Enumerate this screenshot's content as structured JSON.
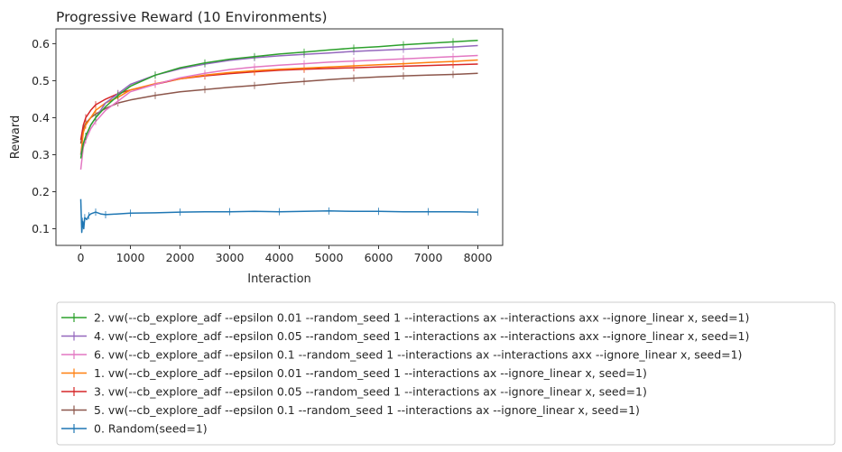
{
  "chart_data": {
    "type": "line",
    "title": "Progressive Reward (10 Environments)",
    "xlabel": "Interaction",
    "ylabel": "Reward",
    "xlim": [
      -500,
      8500
    ],
    "ylim": [
      0.055,
      0.64
    ],
    "xticks": [
      0,
      1000,
      2000,
      3000,
      4000,
      5000,
      6000,
      7000,
      8000
    ],
    "yticks": [
      0.1,
      0.2,
      0.3,
      0.4,
      0.5,
      0.6
    ],
    "xtick_labels": [
      "0",
      "1000",
      "2000",
      "3000",
      "4000",
      "5000",
      "6000",
      "7000",
      "8000"
    ],
    "ytick_labels": [
      "0.1",
      "0.2",
      "0.3",
      "0.4",
      "0.5",
      "0.6"
    ],
    "grid": false,
    "legend_position": "below",
    "series": [
      {
        "name": "2. vw(--cb_explore_adf --epsilon 0.01 --random_seed 1  --interactions ax --interactions axx --ignore_linear x, seed=1)",
        "color": "#2ca02c",
        "x": [
          0,
          50,
          100,
          200,
          300,
          500,
          750,
          1000,
          1500,
          2000,
          2500,
          3000,
          3500,
          4000,
          4500,
          5000,
          5500,
          6000,
          6500,
          7000,
          7500,
          8000
        ],
        "y": [
          0.29,
          0.33,
          0.35,
          0.38,
          0.4,
          0.43,
          0.46,
          0.485,
          0.515,
          0.535,
          0.548,
          0.558,
          0.565,
          0.572,
          0.577,
          0.583,
          0.588,
          0.592,
          0.597,
          0.601,
          0.605,
          0.609
        ]
      },
      {
        "name": "4. vw(--cb_explore_adf --epsilon 0.05 --random_seed 1  --interactions ax --interactions axx --ignore_linear x, seed=1)",
        "color": "#9467bd",
        "x": [
          0,
          50,
          100,
          200,
          300,
          500,
          750,
          1000,
          1500,
          2000,
          2500,
          3000,
          3500,
          4000,
          4500,
          5000,
          5500,
          6000,
          6500,
          7000,
          7500,
          8000
        ],
        "y": [
          0.3,
          0.33,
          0.35,
          0.38,
          0.4,
          0.44,
          0.465,
          0.49,
          0.515,
          0.532,
          0.545,
          0.555,
          0.562,
          0.567,
          0.571,
          0.575,
          0.579,
          0.582,
          0.585,
          0.588,
          0.591,
          0.595
        ]
      },
      {
        "name": "6. vw(--cb_explore_adf --epsilon 0.1 --random_seed 1  --interactions ax --interactions axx --ignore_linear x, seed=1)",
        "color": "#e377c2",
        "x": [
          0,
          50,
          100,
          200,
          300,
          500,
          750,
          1000,
          1500,
          2000,
          2500,
          3000,
          3500,
          4000,
          4500,
          5000,
          5500,
          6000,
          6500,
          7000,
          7500,
          8000
        ],
        "y": [
          0.26,
          0.32,
          0.34,
          0.37,
          0.39,
          0.42,
          0.445,
          0.47,
          0.49,
          0.508,
          0.52,
          0.53,
          0.537,
          0.542,
          0.546,
          0.55,
          0.553,
          0.556,
          0.559,
          0.562,
          0.565,
          0.568
        ]
      },
      {
        "name": "1. vw(--cb_explore_adf --epsilon 0.01 --random_seed 1  --interactions ax --ignore_linear x, seed=1)",
        "color": "#ff7f0e",
        "x": [
          0,
          50,
          100,
          200,
          300,
          500,
          750,
          1000,
          1500,
          2000,
          2500,
          3000,
          3500,
          4000,
          4500,
          5000,
          5500,
          6000,
          6500,
          7000,
          7500,
          8000
        ],
        "y": [
          0.3,
          0.36,
          0.38,
          0.4,
          0.42,
          0.44,
          0.455,
          0.475,
          0.492,
          0.505,
          0.515,
          0.522,
          0.527,
          0.531,
          0.534,
          0.537,
          0.54,
          0.543,
          0.546,
          0.549,
          0.552,
          0.556
        ]
      },
      {
        "name": "3. vw(--cb_explore_adf --epsilon 0.05 --random_seed 1  --interactions ax --ignore_linear x, seed=1)",
        "color": "#d62728",
        "x": [
          0,
          50,
          100,
          200,
          300,
          500,
          750,
          1000,
          1500,
          2000,
          2500,
          3000,
          3500,
          4000,
          4500,
          5000,
          5500,
          6000,
          6500,
          7000,
          7500,
          8000
        ],
        "y": [
          0.34,
          0.38,
          0.4,
          0.42,
          0.435,
          0.45,
          0.465,
          0.475,
          0.49,
          0.505,
          0.513,
          0.519,
          0.524,
          0.528,
          0.531,
          0.533,
          0.535,
          0.537,
          0.539,
          0.541,
          0.543,
          0.545
        ]
      },
      {
        "name": "5. vw(--cb_explore_adf --epsilon 0.1 --random_seed 1  --interactions ax --ignore_linear x, seed=1)",
        "color": "#8c564b",
        "x": [
          0,
          50,
          100,
          200,
          300,
          500,
          750,
          1000,
          1500,
          2000,
          2500,
          3000,
          3500,
          4000,
          4500,
          5000,
          5500,
          6000,
          6500,
          7000,
          7500,
          8000
        ],
        "y": [
          0.33,
          0.37,
          0.385,
          0.4,
          0.41,
          0.425,
          0.44,
          0.448,
          0.46,
          0.47,
          0.476,
          0.482,
          0.487,
          0.493,
          0.498,
          0.503,
          0.507,
          0.51,
          0.513,
          0.515,
          0.517,
          0.52
        ]
      },
      {
        "name": "0. Random(seed=1)",
        "color": "#1f77b4",
        "x": [
          0,
          20,
          40,
          60,
          80,
          120,
          160,
          200,
          300,
          400,
          500,
          750,
          1000,
          1500,
          2000,
          2500,
          3000,
          3500,
          4000,
          4500,
          5000,
          5500,
          6000,
          6500,
          7000,
          7500,
          8000
        ],
        "y": [
          0.18,
          0.09,
          0.12,
          0.1,
          0.13,
          0.125,
          0.135,
          0.14,
          0.145,
          0.14,
          0.138,
          0.14,
          0.142,
          0.143,
          0.145,
          0.146,
          0.146,
          0.147,
          0.146,
          0.147,
          0.148,
          0.147,
          0.147,
          0.146,
          0.146,
          0.146,
          0.145
        ]
      }
    ]
  }
}
